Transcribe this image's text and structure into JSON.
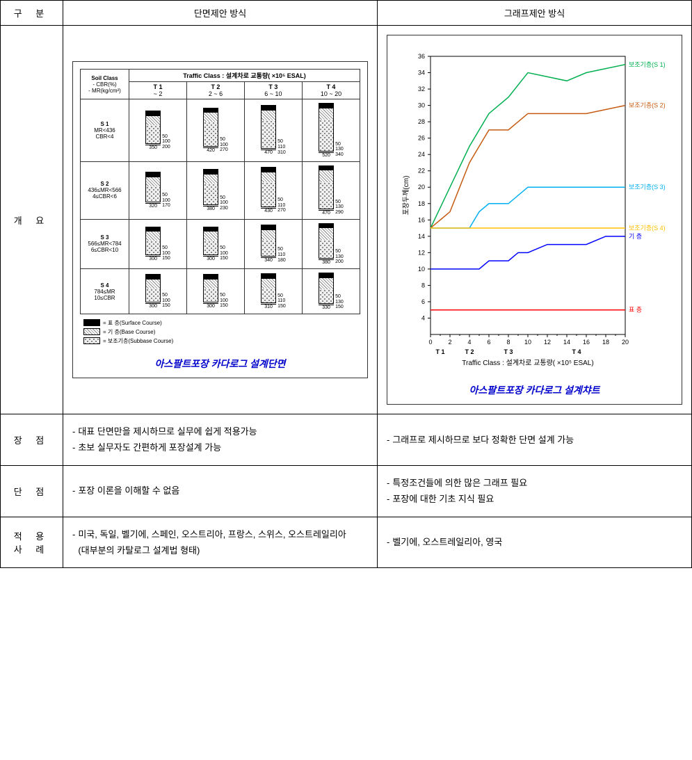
{
  "headers": {
    "category": "구 분",
    "method1": "단면제안 방식",
    "method2": "그래프제안 방식"
  },
  "row_labels": {
    "overview": "개 요",
    "pros": "장 점",
    "cons": "단 점",
    "cases": "적 용\n사 례"
  },
  "section_diagram": {
    "title": "아스팔트포장 카다로그 설계단면",
    "traffic_header": "Traffic Class : 설계차로 교통량( ×10⁵ ESAL)",
    "soil_header": "Soil Class\n- CBR(%)\n- MR(kg/cm²)",
    "traffic_classes": [
      {
        "name": "T 1",
        "range": "~ 2"
      },
      {
        "name": "T 2",
        "range": "2 ~ 6"
      },
      {
        "name": "T 3",
        "range": "6 ~ 10"
      },
      {
        "name": "T 4",
        "range": "10 ~ 20"
      }
    ],
    "soil_classes": [
      {
        "name": "S 1",
        "cond": "MR<436\nCBR<4"
      },
      {
        "name": "S 2",
        "cond": "436≤MR<566\n4≤CBR<6"
      },
      {
        "name": "S 3",
        "cond": "566≤MR<784\n6≤CBR<10"
      },
      {
        "name": "S 4",
        "cond": "784≤MR\n10≤CBR"
      }
    ],
    "cells": [
      [
        {
          "s": 50,
          "b": 100,
          "sb": 200,
          "t": 350
        },
        {
          "s": 50,
          "b": 100,
          "sb": 270,
          "t": 420
        },
        {
          "s": 50,
          "b": 110,
          "sb": 310,
          "t": 470
        },
        {
          "s": 50,
          "b": 130,
          "sb": 340,
          "t": 520
        }
      ],
      [
        {
          "s": 50,
          "b": 100,
          "sb": 170,
          "t": 320
        },
        {
          "s": 50,
          "b": 100,
          "sb": 230,
          "t": 380
        },
        {
          "s": 50,
          "b": 110,
          "sb": 270,
          "t": 430
        },
        {
          "s": 50,
          "b": 130,
          "sb": 290,
          "t": 470
        }
      ],
      [
        {
          "s": 50,
          "b": 100,
          "sb": 150,
          "t": 300
        },
        {
          "s": 50,
          "b": 100,
          "sb": 150,
          "t": 300
        },
        {
          "s": 50,
          "b": 110,
          "sb": 180,
          "t": 340
        },
        {
          "s": 50,
          "b": 130,
          "sb": 200,
          "t": 380
        }
      ],
      [
        {
          "s": 50,
          "b": 100,
          "sb": 150,
          "t": 300
        },
        {
          "s": 50,
          "b": 100,
          "sb": 150,
          "t": 300
        },
        {
          "s": 50,
          "b": 110,
          "sb": 150,
          "t": 310
        },
        {
          "s": 50,
          "b": 130,
          "sb": 150,
          "t": 330
        }
      ]
    ],
    "legend": [
      {
        "class": "layer-surface",
        "label": "= 표 층(Surface Course)"
      },
      {
        "class": "layer-base",
        "label": "= 기 층(Base   Course)"
      },
      {
        "class": "layer-subbase",
        "label": "= 보조기층(Subbase Course)"
      }
    ]
  },
  "chart": {
    "title": "아스팔트포장 카다로그 설계챠트",
    "ylabel": "포장두께(cm)",
    "xlabel": "Traffic Class : 설계차로 교통량( ×10⁵ ESAL)",
    "xlim": [
      0,
      20
    ],
    "ylim": [
      2,
      36
    ],
    "xticks": [
      0,
      2,
      4,
      6,
      8,
      10,
      12,
      14,
      16,
      18,
      20
    ],
    "yticks": [
      4,
      6,
      8,
      10,
      12,
      14,
      16,
      18,
      20,
      22,
      24,
      26,
      28,
      30,
      32,
      34,
      36
    ],
    "xclass_labels": [
      {
        "x": 1,
        "label": "T 1"
      },
      {
        "x": 4,
        "label": "T 2"
      },
      {
        "x": 8,
        "label": "T 3"
      },
      {
        "x": 15,
        "label": "T 4"
      }
    ],
    "grid_color": "#cccccc",
    "series": [
      {
        "name": "보조기층(S 1)",
        "color": "#00b050",
        "points": [
          [
            0,
            15
          ],
          [
            2,
            20
          ],
          [
            4,
            25
          ],
          [
            5,
            27
          ],
          [
            6,
            29
          ],
          [
            7,
            30
          ],
          [
            8,
            31
          ],
          [
            10,
            34
          ],
          [
            12,
            33.5
          ],
          [
            14,
            33
          ],
          [
            16,
            34
          ],
          [
            18,
            34.5
          ],
          [
            20,
            35
          ]
        ]
      },
      {
        "name": "보조기층(S 2)",
        "color": "#c55a11",
        "points": [
          [
            0,
            15
          ],
          [
            2,
            17
          ],
          [
            4,
            23
          ],
          [
            5,
            25
          ],
          [
            6,
            27
          ],
          [
            7,
            27
          ],
          [
            8,
            27
          ],
          [
            10,
            29
          ],
          [
            12,
            29
          ],
          [
            14,
            29
          ],
          [
            16,
            29
          ],
          [
            18,
            29.5
          ],
          [
            20,
            30
          ]
        ]
      },
      {
        "name": "보조기층(S 3)",
        "color": "#00b0f0",
        "points": [
          [
            0,
            15
          ],
          [
            2,
            15
          ],
          [
            4,
            15
          ],
          [
            5,
            17
          ],
          [
            6,
            18
          ],
          [
            7,
            18
          ],
          [
            8,
            18
          ],
          [
            10,
            20
          ],
          [
            12,
            20
          ],
          [
            14,
            20
          ],
          [
            16,
            20
          ],
          [
            18,
            20
          ],
          [
            20,
            20
          ]
        ]
      },
      {
        "name": "보조기층(S 4)",
        "color": "#ffc000",
        "points": [
          [
            0,
            15
          ],
          [
            20,
            15
          ]
        ]
      },
      {
        "name": "기 층",
        "color": "#0000ff",
        "points": [
          [
            0,
            10
          ],
          [
            2,
            10
          ],
          [
            4,
            10
          ],
          [
            5,
            10
          ],
          [
            6,
            11
          ],
          [
            7,
            11
          ],
          [
            8,
            11
          ],
          [
            9,
            12
          ],
          [
            10,
            12
          ],
          [
            12,
            13
          ],
          [
            14,
            13
          ],
          [
            16,
            13
          ],
          [
            18,
            14
          ],
          [
            20,
            14
          ]
        ]
      },
      {
        "name": "표 층",
        "color": "#ff0000",
        "points": [
          [
            0,
            5
          ],
          [
            20,
            5
          ]
        ]
      }
    ]
  },
  "pros": {
    "m1": [
      "대표 단면만을 제시하므로 실무에 쉽게 적용가능",
      "초보 실무자도 간편하게 포장설계 가능"
    ],
    "m2": [
      "그래프로 제시하므로 보다 정확한 단면 설계 가능"
    ]
  },
  "cons": {
    "m1": [
      "포장 이론을 이해할 수 없음"
    ],
    "m2": [
      "특정조건들에 의한 많은 그래프 필요",
      "포장에 대한 기초 지식 필요"
    ]
  },
  "cases": {
    "m1": [
      "미국, 독일, 벨기에, 스페인, 오스트리아, 프랑스, 스위스, 오스트레일리아\n(대부분의 카탈로그 설계법 형태)"
    ],
    "m2": [
      "벨기에, 오스트레일리아, 영국"
    ]
  }
}
